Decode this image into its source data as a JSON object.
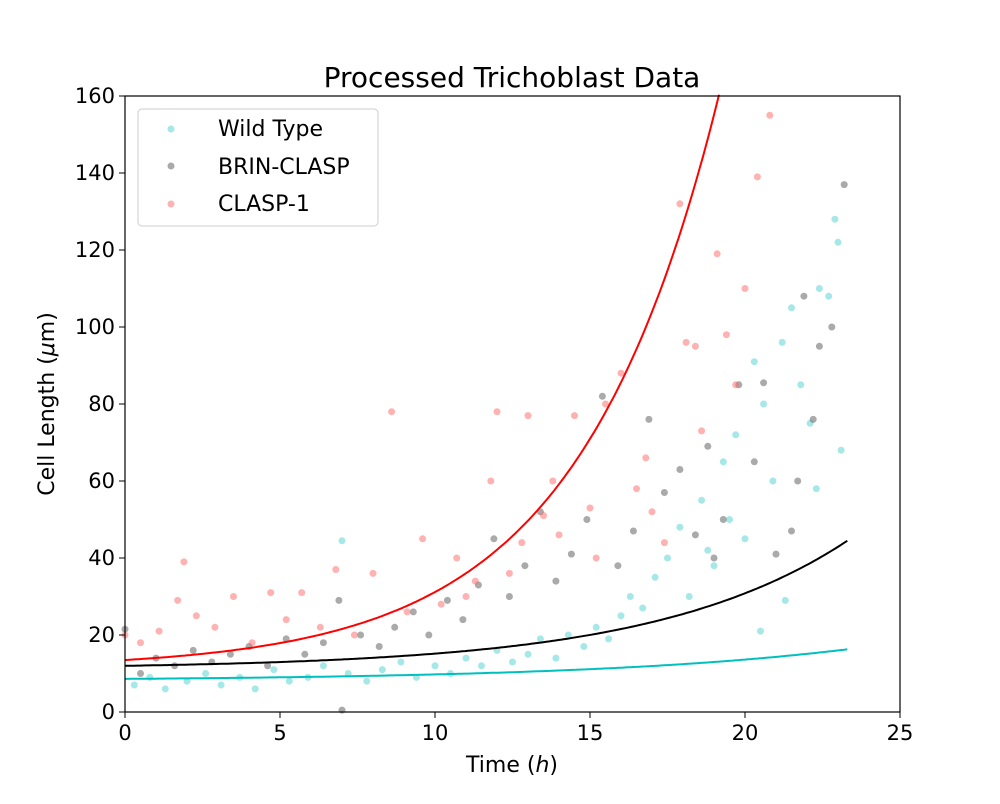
{
  "chart_data": {
    "type": "scatter",
    "title": "Processed Trichoblast Data",
    "xlabel_main": "Time (",
    "xlabel_var": "h",
    "xlabel_end": ")",
    "ylabel_main": "Cell Length (",
    "ylabel_var": "μ",
    "ylabel_end": "m)",
    "xlim": [
      0,
      25
    ],
    "ylim": [
      0,
      160
    ],
    "xticks": [
      0,
      5,
      10,
      15,
      20,
      25
    ],
    "yticks": [
      0,
      20,
      40,
      60,
      80,
      100,
      120,
      140,
      160
    ],
    "grid": false,
    "legend_position": "top-left",
    "series": [
      {
        "name": "Wild Type",
        "color": "#00BFBF",
        "marker_color": "#4DD2D2",
        "fit": {
          "a": 8.6,
          "b": 0.12,
          "c": 0.5,
          "t_end": 23.3
        },
        "points": [
          [
            0.3,
            7
          ],
          [
            0.8,
            9
          ],
          [
            1.3,
            6
          ],
          [
            2.0,
            8
          ],
          [
            2.6,
            10
          ],
          [
            3.1,
            7
          ],
          [
            3.7,
            9
          ],
          [
            4.2,
            6
          ],
          [
            4.8,
            11
          ],
          [
            5.3,
            8
          ],
          [
            5.9,
            9
          ],
          [
            6.4,
            12
          ],
          [
            7.0,
            44.5
          ],
          [
            7.2,
            10
          ],
          [
            7.8,
            8
          ],
          [
            8.3,
            11
          ],
          [
            8.9,
            13
          ],
          [
            9.4,
            9
          ],
          [
            10.0,
            12
          ],
          [
            10.5,
            10
          ],
          [
            11.0,
            14
          ],
          [
            11.5,
            12
          ],
          [
            12.0,
            16
          ],
          [
            12.5,
            13
          ],
          [
            13.0,
            15
          ],
          [
            13.4,
            19
          ],
          [
            13.9,
            14
          ],
          [
            14.3,
            20
          ],
          [
            14.8,
            17
          ],
          [
            15.2,
            22
          ],
          [
            15.6,
            19
          ],
          [
            16.0,
            25
          ],
          [
            16.3,
            30
          ],
          [
            16.7,
            27
          ],
          [
            17.1,
            35
          ],
          [
            17.5,
            40
          ],
          [
            17.9,
            48
          ],
          [
            18.2,
            30
          ],
          [
            18.6,
            55
          ],
          [
            19.0,
            38
          ],
          [
            19.3,
            65
          ],
          [
            19.7,
            72
          ],
          [
            20.0,
            45
          ],
          [
            20.3,
            91
          ],
          [
            20.6,
            80
          ],
          [
            20.9,
            60
          ],
          [
            21.2,
            96
          ],
          [
            21.5,
            105
          ],
          [
            21.8,
            85
          ],
          [
            22.1,
            75
          ],
          [
            22.4,
            110
          ],
          [
            22.7,
            108
          ],
          [
            22.9,
            128
          ],
          [
            23.0,
            122
          ],
          [
            23.1,
            68
          ],
          [
            20.5,
            21
          ],
          [
            21.3,
            29
          ],
          [
            22.3,
            58
          ],
          [
            19.5,
            50
          ],
          [
            18.8,
            42
          ]
        ]
      },
      {
        "name": "BRIN-CLASP",
        "color": "#000000",
        "marker_color": "#555555",
        "fit": {
          "a": 12.0,
          "b": 0.16,
          "c": 0.8,
          "t_end": 23.3
        },
        "points": [
          [
            0.0,
            21.5
          ],
          [
            0.5,
            10
          ],
          [
            1.0,
            14
          ],
          [
            1.6,
            12
          ],
          [
            2.2,
            16
          ],
          [
            2.8,
            13
          ],
          [
            3.4,
            15
          ],
          [
            4.0,
            17
          ],
          [
            4.6,
            12
          ],
          [
            5.2,
            19
          ],
          [
            5.8,
            15
          ],
          [
            6.4,
            18
          ],
          [
            6.9,
            29
          ],
          [
            7.0,
            0.5
          ],
          [
            7.6,
            20
          ],
          [
            8.2,
            17
          ],
          [
            8.7,
            22
          ],
          [
            9.3,
            26
          ],
          [
            9.8,
            20
          ],
          [
            10.4,
            29
          ],
          [
            10.9,
            24
          ],
          [
            11.4,
            33
          ],
          [
            11.9,
            45
          ],
          [
            12.4,
            30
          ],
          [
            12.9,
            38
          ],
          [
            13.4,
            52
          ],
          [
            13.9,
            34
          ],
          [
            14.4,
            41
          ],
          [
            14.9,
            50
          ],
          [
            15.4,
            82
          ],
          [
            15.9,
            38
          ],
          [
            16.4,
            47
          ],
          [
            16.9,
            76
          ],
          [
            17.4,
            57
          ],
          [
            17.9,
            63
          ],
          [
            18.4,
            46
          ],
          [
            18.8,
            69
          ],
          [
            19.3,
            50
          ],
          [
            19.8,
            85
          ],
          [
            20.3,
            65
          ],
          [
            20.6,
            85.5
          ],
          [
            21.0,
            41
          ],
          [
            21.5,
            47
          ],
          [
            21.9,
            108
          ],
          [
            22.4,
            95
          ],
          [
            22.8,
            100
          ],
          [
            23.2,
            137
          ],
          [
            22.2,
            76
          ],
          [
            21.7,
            60
          ],
          [
            19.0,
            40
          ]
        ]
      },
      {
        "name": "CLASP-1",
        "color": "#FF0000",
        "marker_color": "#FF6666",
        "fit": {
          "a": 13.5,
          "b": 0.22,
          "c": 2.2,
          "t_end": 21.0
        },
        "points": [
          [
            0.0,
            20
          ],
          [
            0.5,
            18
          ],
          [
            1.1,
            21
          ],
          [
            1.7,
            29
          ],
          [
            1.9,
            39
          ],
          [
            2.3,
            25
          ],
          [
            2.9,
            22
          ],
          [
            3.5,
            30
          ],
          [
            4.1,
            18
          ],
          [
            4.7,
            31
          ],
          [
            5.2,
            24
          ],
          [
            5.7,
            31
          ],
          [
            6.3,
            22
          ],
          [
            6.8,
            37
          ],
          [
            7.4,
            20
          ],
          [
            8.0,
            36
          ],
          [
            8.6,
            78
          ],
          [
            9.1,
            26
          ],
          [
            9.6,
            45
          ],
          [
            10.2,
            28
          ],
          [
            10.7,
            40
          ],
          [
            11.3,
            34
          ],
          [
            11.8,
            60
          ],
          [
            12.0,
            78
          ],
          [
            12.4,
            36
          ],
          [
            13.0,
            77
          ],
          [
            13.5,
            51
          ],
          [
            14.0,
            46
          ],
          [
            14.5,
            77
          ],
          [
            15.0,
            53
          ],
          [
            15.5,
            80
          ],
          [
            16.0,
            88
          ],
          [
            16.5,
            58
          ],
          [
            17.0,
            52
          ],
          [
            17.4,
            44
          ],
          [
            17.9,
            132
          ],
          [
            18.1,
            96
          ],
          [
            18.6,
            73
          ],
          [
            19.1,
            119
          ],
          [
            19.4,
            98
          ],
          [
            20.0,
            110
          ],
          [
            20.4,
            139
          ],
          [
            20.8,
            155
          ],
          [
            19.7,
            85
          ],
          [
            18.4,
            95
          ],
          [
            16.8,
            66
          ],
          [
            15.2,
            40
          ],
          [
            13.8,
            60
          ],
          [
            12.8,
            44
          ],
          [
            11.0,
            30
          ]
        ]
      }
    ]
  }
}
